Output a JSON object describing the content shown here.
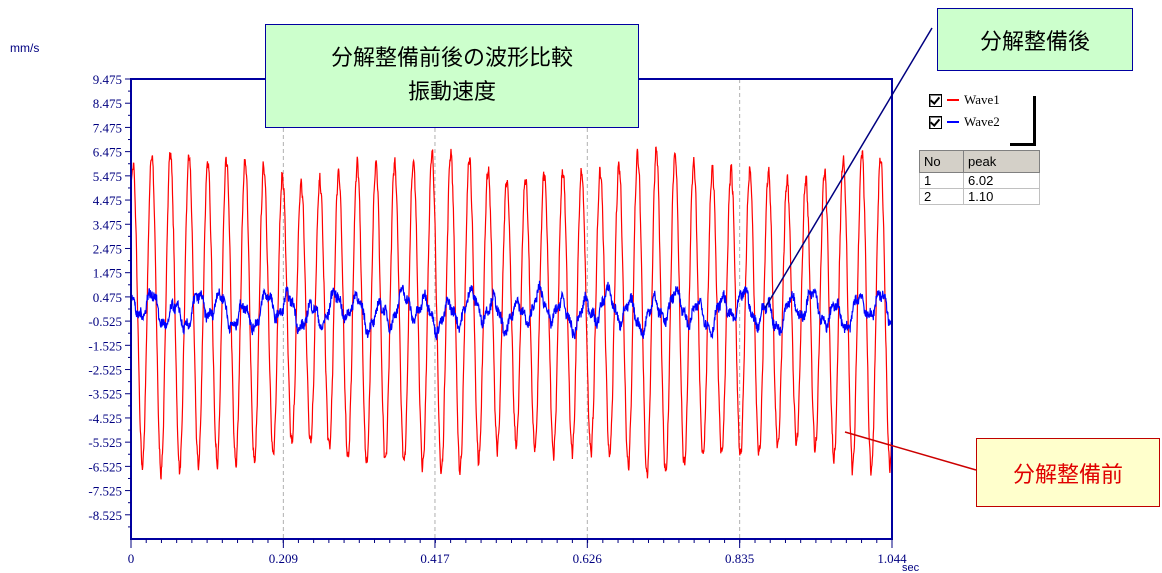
{
  "chart_data": {
    "type": "line",
    "ylabel": "mm/s",
    "xlabel": "sec",
    "xlim": [
      0,
      1.044
    ],
    "ylim": [
      -9.525,
      9.475
    ],
    "x_ticks": [
      "0",
      "0.209",
      "0.417",
      "0.626",
      "0.835",
      "1.044"
    ],
    "y_ticks": [
      "9.475",
      "8.475",
      "7.475",
      "6.475",
      "5.475",
      "4.475",
      "3.475",
      "2.475",
      "1.475",
      "0.475",
      "-0.525",
      "-1.525",
      "-2.525",
      "-3.525",
      "-4.525",
      "-5.525",
      "-6.525",
      "-7.525",
      "-8.525"
    ],
    "grid": "vertical dashed",
    "series": [
      {
        "name": "Wave1",
        "color": "#ff0000",
        "amplitude": 6.02,
        "frequency_hz": 39,
        "waveform": "sinusoid"
      },
      {
        "name": "Wave2",
        "color": "#0000ff",
        "amplitude": 1.1,
        "frequency_hz": 32,
        "waveform": "noisy sinusoid"
      }
    ],
    "annotations": [
      "分解整備前後の波形比較",
      "振動速度",
      "分解整備後",
      "分解整備前"
    ]
  },
  "title": {
    "line1": "分解整備前後の波形比較",
    "line2": "振動速度"
  },
  "callouts": {
    "after": "分解整備後",
    "before": "分解整備前"
  },
  "legend": [
    {
      "label": "Wave1",
      "color": "#ff0000",
      "checked": true
    },
    {
      "label": "Wave2",
      "color": "#0000ff",
      "checked": true
    }
  ],
  "peak_table": {
    "headers": [
      "No",
      "peak"
    ],
    "rows": [
      [
        "1",
        "6.02"
      ],
      [
        "2",
        "1.10"
      ]
    ]
  }
}
